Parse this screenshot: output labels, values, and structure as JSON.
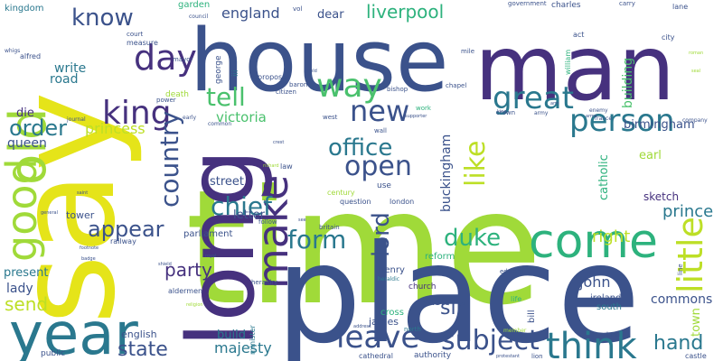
{
  "words": [
    {
      "text": "time",
      "color": "#a0da39"
    },
    {
      "text": "place",
      "color": "#3b528b"
    },
    {
      "text": "say",
      "color": "#e5e419"
    },
    {
      "text": "house",
      "color": "#3b528b"
    },
    {
      "text": "man",
      "color": "#46317e"
    },
    {
      "text": "long",
      "color": "#46317e"
    },
    {
      "text": "year",
      "color": "#2a788e"
    },
    {
      "text": "come",
      "color": "#2db27d"
    },
    {
      "text": "old",
      "color": "#a0da39"
    },
    {
      "text": "good",
      "color": "#a0da39"
    },
    {
      "text": "great",
      "color": "#2a788e"
    },
    {
      "text": "person",
      "color": "#2a788e"
    },
    {
      "text": "think",
      "color": "#2a788e"
    },
    {
      "text": "make",
      "color": "#46317e"
    },
    {
      "text": "little",
      "color": "#bddf26"
    },
    {
      "text": "day",
      "color": "#46317e"
    },
    {
      "text": "king",
      "color": "#46317e"
    },
    {
      "text": "way",
      "color": "#4ac16d"
    },
    {
      "text": "new",
      "color": "#3b528b"
    },
    {
      "text": "leave",
      "color": "#3b528b"
    },
    {
      "text": "subject",
      "color": "#3b528b"
    },
    {
      "text": "open",
      "color": "#3b528b"
    },
    {
      "text": "office",
      "color": "#2a788e"
    },
    {
      "text": "country",
      "color": "#3b528b"
    },
    {
      "text": "chief",
      "color": "#2a788e"
    },
    {
      "text": "form",
      "color": "#2a788e"
    },
    {
      "text": "duke",
      "color": "#2db27d"
    },
    {
      "text": "lord",
      "color": "#3b528b"
    },
    {
      "text": "like",
      "color": "#bddf26"
    },
    {
      "text": "tell",
      "color": "#4ac16d"
    },
    {
      "text": "know",
      "color": "#3b528b"
    },
    {
      "text": "appear",
      "color": "#3b528b"
    },
    {
      "text": "order",
      "color": "#2a788e"
    },
    {
      "text": "state",
      "color": "#3b528b"
    },
    {
      "text": "hand",
      "color": "#2a788e"
    },
    {
      "text": "sir",
      "color": "#3b528b"
    },
    {
      "text": "party",
      "color": "#46317e"
    },
    {
      "text": "right",
      "color": "#bddf26"
    },
    {
      "text": "prince",
      "color": "#2a788e"
    },
    {
      "text": "john",
      "color": "#3b528b"
    },
    {
      "text": "send",
      "color": "#bddf26"
    },
    {
      "text": "liverpool",
      "color": "#2db27d"
    },
    {
      "text": "majesty",
      "color": "#2a788e"
    },
    {
      "text": "princess",
      "color": "#bddf26"
    },
    {
      "text": "victoria",
      "color": "#4ac16d"
    },
    {
      "text": "england",
      "color": "#3b528b"
    },
    {
      "text": "queen",
      "color": "#3b528b"
    },
    {
      "text": "write",
      "color": "#2a788e"
    },
    {
      "text": "road",
      "color": "#2a788e"
    },
    {
      "text": "die",
      "color": "#46317e"
    },
    {
      "text": "lady",
      "color": "#3b528b"
    },
    {
      "text": "present",
      "color": "#2a788e"
    },
    {
      "text": "buckingham",
      "color": "#3b528b"
    },
    {
      "text": "building",
      "color": "#4ac16d"
    },
    {
      "text": "catholic",
      "color": "#2db27d"
    },
    {
      "text": "birmingham",
      "color": "#3b528b"
    },
    {
      "text": "commons",
      "color": "#3b528b"
    },
    {
      "text": "earl",
      "color": "#a0da39"
    },
    {
      "text": "town",
      "color": "#a0da39"
    },
    {
      "text": "wish",
      "color": "#3b528b"
    },
    {
      "text": "letter",
      "color": "#3b528b"
    },
    {
      "text": "street",
      "color": "#3b528b"
    },
    {
      "text": "build",
      "color": "#2a788e"
    },
    {
      "text": "english",
      "color": "#3b528b"
    },
    {
      "text": "tower",
      "color": "#3b528b"
    },
    {
      "text": "james",
      "color": "#3b528b"
    },
    {
      "text": "dear",
      "color": "#3b528b"
    },
    {
      "text": "sketch",
      "color": "#46317e"
    },
    {
      "text": "ireland",
      "color": "#3b528b"
    },
    {
      "text": "south",
      "color": "#2a788e"
    },
    {
      "text": "cross",
      "color": "#2db27d"
    },
    {
      "text": "church",
      "color": "#46317e"
    },
    {
      "text": "reform",
      "color": "#2db27d"
    },
    {
      "text": "henry",
      "color": "#3b528b"
    },
    {
      "text": "bill",
      "color": "#3b528b"
    },
    {
      "text": "parliament",
      "color": "#3b528b"
    },
    {
      "text": "garden",
      "color": "#2db27d"
    },
    {
      "text": "kingdom",
      "color": "#2a788e"
    },
    {
      "text": "alfred",
      "color": "#3b528b"
    },
    {
      "text": "measure",
      "color": "#3b528b"
    },
    {
      "text": "court",
      "color": "#3b528b"
    },
    {
      "text": "council",
      "color": "#3b528b"
    },
    {
      "text": "mayor",
      "color": "#3b528b"
    },
    {
      "text": "george",
      "color": "#3b528b"
    },
    {
      "text": "iii",
      "color": "#2a788e"
    },
    {
      "text": "vol",
      "color": "#3b528b"
    },
    {
      "text": "lane",
      "color": "#3b528b"
    },
    {
      "text": "charles",
      "color": "#3b528b"
    },
    {
      "text": "government",
      "color": "#3b528b"
    },
    {
      "text": "carry",
      "color": "#3b528b"
    },
    {
      "text": "act",
      "color": "#3b528b"
    },
    {
      "text": "william",
      "color": "#2db27d"
    },
    {
      "text": "city",
      "color": "#3b528b"
    },
    {
      "text": "mile",
      "color": "#3b528b"
    },
    {
      "text": "propose",
      "color": "#3b528b"
    },
    {
      "text": "baron",
      "color": "#3b528b"
    },
    {
      "text": "citizen",
      "color": "#3b528b"
    },
    {
      "text": "bishop",
      "color": "#3b528b"
    },
    {
      "text": "chapel",
      "color": "#3b528b"
    },
    {
      "text": "crown",
      "color": "#3b528b"
    },
    {
      "text": "army",
      "color": "#3b528b"
    },
    {
      "text": "enemy",
      "color": "#3b528b"
    },
    {
      "text": "france",
      "color": "#3b528b"
    },
    {
      "text": "company",
      "color": "#3b528b"
    },
    {
      "text": "death",
      "color": "#a0da39"
    },
    {
      "text": "power",
      "color": "#3b528b"
    },
    {
      "text": "early",
      "color": "#3b528b"
    },
    {
      "text": "common",
      "color": "#3b528b"
    },
    {
      "text": "west",
      "color": "#3b528b"
    },
    {
      "text": "wall",
      "color": "#3b528b"
    },
    {
      "text": "work",
      "color": "#2db27d"
    },
    {
      "text": "journal",
      "color": "#3b528b"
    },
    {
      "text": "law",
      "color": "#3b528b"
    },
    {
      "text": "century",
      "color": "#a0da39"
    },
    {
      "text": "use",
      "color": "#3b528b"
    },
    {
      "text": "question",
      "color": "#3b528b"
    },
    {
      "text": "london",
      "color": "#3b528b"
    },
    {
      "text": "follow",
      "color": "#3b528b"
    },
    {
      "text": "britain",
      "color": "#3b528b"
    },
    {
      "text": "railway",
      "color": "#3b528b"
    },
    {
      "text": "edward",
      "color": "#3b528b"
    },
    {
      "text": "line",
      "color": "#3b528b"
    },
    {
      "text": "aldermen",
      "color": "#3b528b"
    },
    {
      "text": "heraldry",
      "color": "#3b528b"
    },
    {
      "text": "heraldic",
      "color": "#2a788e"
    },
    {
      "text": "life",
      "color": "#2db27d"
    },
    {
      "text": "minister",
      "color": "#2a788e"
    },
    {
      "text": "north",
      "color": "#2a788e"
    },
    {
      "text": "member",
      "color": "#a0da39"
    },
    {
      "text": "land",
      "color": "#3b528b"
    },
    {
      "text": "public",
      "color": "#3b528b"
    },
    {
      "text": "cathedral",
      "color": "#3b528b"
    },
    {
      "text": "authority",
      "color": "#3b528b"
    },
    {
      "text": "lion",
      "color": "#3b528b"
    },
    {
      "text": "castle",
      "color": "#3b528b"
    },
    {
      "text": "whigs",
      "color": "#3b528b"
    },
    {
      "text": "general",
      "color": "#3b528b"
    },
    {
      "text": "saint",
      "color": "#3b528b"
    },
    {
      "text": "footnote",
      "color": "#3b528b"
    },
    {
      "text": "badge",
      "color": "#3b528b"
    },
    {
      "text": "royal",
      "color": "#3b528b"
    },
    {
      "text": "shield",
      "color": "#3b528b"
    },
    {
      "text": "religion",
      "color": "#a0da39"
    },
    {
      "text": "crest",
      "color": "#3b528b"
    },
    {
      "text": "richard",
      "color": "#a0da39"
    },
    {
      "text": "supporter",
      "color": "#3b528b"
    },
    {
      "text": "address",
      "color": "#3b528b"
    },
    {
      "text": "protestant",
      "color": "#3b528b"
    },
    {
      "text": "seal",
      "color": "#a0da39"
    },
    {
      "text": "roman",
      "color": "#a0da39"
    },
    {
      "text": "arm",
      "color": "#3b528b"
    },
    {
      "text": "field",
      "color": "#3b528b"
    },
    {
      "text": "see",
      "color": "#3b528b"
    },
    {
      "text": "king",
      "color": "#3b528b"
    },
    {
      "text": "arms",
      "color": "#3b528b"
    }
  ]
}
